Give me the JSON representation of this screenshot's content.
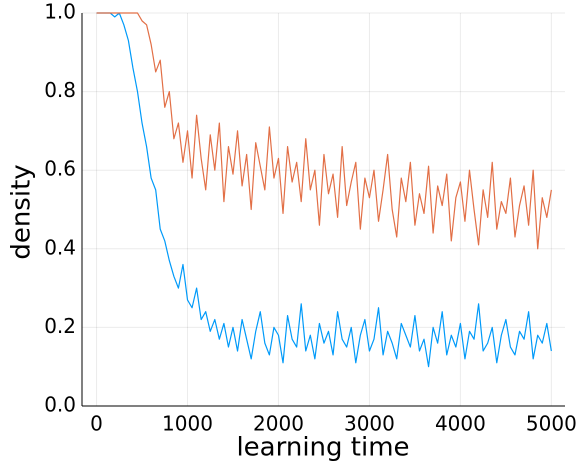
{
  "chart_data": {
    "type": "line",
    "xlabel": "learning time",
    "ylabel": "density",
    "x": [
      0,
      50,
      100,
      150,
      200,
      250,
      300,
      350,
      400,
      450,
      500,
      550,
      600,
      650,
      700,
      750,
      800,
      850,
      900,
      950,
      1000,
      1050,
      1100,
      1150,
      1200,
      1250,
      1300,
      1350,
      1400,
      1450,
      1500,
      1550,
      1600,
      1650,
      1700,
      1750,
      1800,
      1850,
      1900,
      1950,
      2000,
      2050,
      2100,
      2150,
      2200,
      2250,
      2300,
      2350,
      2400,
      2450,
      2500,
      2550,
      2600,
      2650,
      2700,
      2750,
      2800,
      2850,
      2900,
      2950,
      3000,
      3050,
      3100,
      3150,
      3200,
      3250,
      3300,
      3350,
      3400,
      3450,
      3500,
      3550,
      3600,
      3650,
      3700,
      3750,
      3800,
      3850,
      3900,
      3950,
      4000,
      4050,
      4100,
      4150,
      4200,
      4250,
      4300,
      4350,
      4400,
      4450,
      4500,
      4550,
      4600,
      4650,
      4700,
      4750,
      4800,
      4850,
      4900,
      4950,
      5000
    ],
    "series": [
      {
        "color": "#009af9",
        "values": [
          1,
          1,
          1,
          1,
          0.99,
          1,
          0.97,
          0.93,
          0.86,
          0.8,
          0.72,
          0.66,
          0.58,
          0.55,
          0.45,
          0.42,
          0.37,
          0.33,
          0.3,
          0.36,
          0.27,
          0.25,
          0.3,
          0.22,
          0.24,
          0.19,
          0.22,
          0.17,
          0.21,
          0.15,
          0.2,
          0.14,
          0.22,
          0.17,
          0.12,
          0.19,
          0.24,
          0.16,
          0.13,
          0.2,
          0.18,
          0.11,
          0.23,
          0.17,
          0.15,
          0.26,
          0.14,
          0.18,
          0.12,
          0.21,
          0.16,
          0.19,
          0.13,
          0.24,
          0.17,
          0.15,
          0.2,
          0.11,
          0.18,
          0.22,
          0.14,
          0.17,
          0.25,
          0.13,
          0.19,
          0.16,
          0.12,
          0.21,
          0.18,
          0.15,
          0.23,
          0.14,
          0.17,
          0.1,
          0.2,
          0.16,
          0.24,
          0.13,
          0.18,
          0.15,
          0.21,
          0.12,
          0.19,
          0.17,
          0.26,
          0.14,
          0.16,
          0.2,
          0.11,
          0.18,
          0.22,
          0.15,
          0.13,
          0.19,
          0.17,
          0.24,
          0.12,
          0.18,
          0.16,
          0.21,
          0.14
        ]
      },
      {
        "color": "#e26f46",
        "values": [
          1,
          1,
          1,
          1,
          1,
          1,
          1,
          1,
          1,
          1,
          0.98,
          0.97,
          0.92,
          0.85,
          0.88,
          0.76,
          0.8,
          0.68,
          0.72,
          0.62,
          0.7,
          0.58,
          0.74,
          0.63,
          0.55,
          0.69,
          0.6,
          0.72,
          0.52,
          0.66,
          0.59,
          0.7,
          0.56,
          0.64,
          0.5,
          0.67,
          0.61,
          0.55,
          0.71,
          0.58,
          0.63,
          0.49,
          0.66,
          0.57,
          0.62,
          0.52,
          0.68,
          0.55,
          0.6,
          0.46,
          0.64,
          0.54,
          0.59,
          0.48,
          0.66,
          0.51,
          0.57,
          0.62,
          0.45,
          0.58,
          0.53,
          0.6,
          0.47,
          0.55,
          0.64,
          0.5,
          0.43,
          0.58,
          0.52,
          0.62,
          0.46,
          0.54,
          0.49,
          0.61,
          0.44,
          0.56,
          0.51,
          0.59,
          0.42,
          0.53,
          0.57,
          0.47,
          0.6,
          0.5,
          0.41,
          0.55,
          0.48,
          0.62,
          0.45,
          0.52,
          0.49,
          0.58,
          0.43,
          0.51,
          0.56,
          0.46,
          0.6,
          0.4,
          0.53,
          0.48,
          0.55
        ]
      }
    ],
    "xlim": [
      -160,
      5150
    ],
    "ylim": [
      0,
      1
    ],
    "xticks": [
      0,
      1000,
      2000,
      3000,
      4000,
      5000
    ],
    "yticks": [
      {
        "value": 0,
        "label": "0.0"
      },
      0.2,
      0.4,
      0.6,
      0.8,
      {
        "value": 1,
        "label": "1.0"
      }
    ],
    "grid": true
  }
}
